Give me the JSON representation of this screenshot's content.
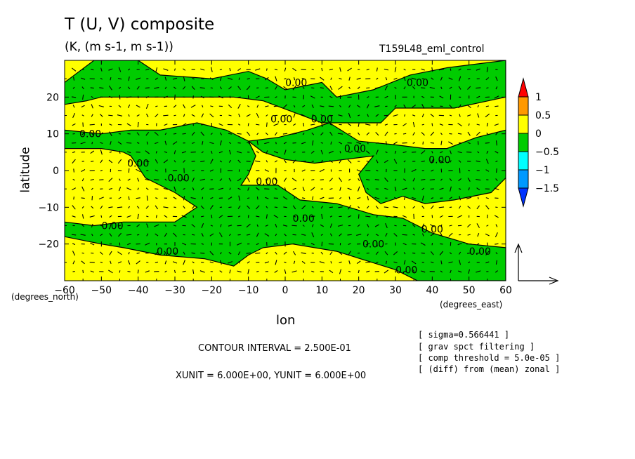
{
  "chart_data": {
    "type": "heatmap",
    "title": "T (U, V) composite",
    "subtitle": "(K, (m s-1, m s-1))",
    "run_label": "T159L48_eml_control",
    "xlabel": "lon",
    "ylabel": "latitude",
    "x_units": "(degrees_east)",
    "y_units": "(degrees_north)",
    "xlim": [
      -60,
      60
    ],
    "ylim": [
      -30,
      30
    ],
    "x_ticks": [
      -60,
      -50,
      -40,
      -30,
      -20,
      -10,
      0,
      10,
      20,
      30,
      40,
      50,
      60
    ],
    "y_ticks": [
      -20,
      -10,
      0,
      10,
      20
    ],
    "contour_interval_text": "CONTOUR INTERVAL = 2.500E-01",
    "unit_text": "XUNIT = 6.000E+00, YUNIT = 6.000E+00",
    "notes": [
      "[ sigma=0.566441 ]",
      "[ grav spct filtering ]",
      "[ comp threshold = 5.0e-05 ]",
      "[ (diff) from (mean) zonal ]"
    ],
    "colorbar": {
      "levels": [
        "1",
        "0.5",
        "0",
        "-0.5",
        "-1",
        "-1.5"
      ],
      "colors": [
        "#ff0000",
        "#ff9900",
        "#ffff00",
        "#00cc00",
        "#00ffff",
        "#0099ff",
        "#0033ff"
      ]
    },
    "contour_labels": [
      {
        "text": "0.00",
        "lon": 3,
        "lat": 24
      },
      {
        "text": "0.00",
        "lon": 36,
        "lat": 24
      },
      {
        "text": "0.00",
        "lon": -53,
        "lat": 10
      },
      {
        "text": "0.00",
        "lon": -1,
        "lat": 14
      },
      {
        "text": "0.00",
        "lon": 10,
        "lat": 14
      },
      {
        "text": "0.00",
        "lon": 19,
        "lat": 6
      },
      {
        "text": "0.00",
        "lon": -40,
        "lat": 2
      },
      {
        "text": "0.00",
        "lon": -29,
        "lat": -2
      },
      {
        "text": "0.00",
        "lon": -5,
        "lat": -3
      },
      {
        "text": "0.00",
        "lon": 42,
        "lat": 3
      },
      {
        "text": "0.00",
        "lon": 5,
        "lat": -13
      },
      {
        "text": "0.00",
        "lon": -47,
        "lat": -15
      },
      {
        "text": "0.00",
        "lon": 40,
        "lat": -16
      },
      {
        "text": "0.00",
        "lon": 24,
        "lat": -20
      },
      {
        "text": "0.00",
        "lon": -32,
        "lat": -22
      },
      {
        "text": "0.00",
        "lon": 53,
        "lat": -22
      },
      {
        "text": "0.00",
        "lon": 33,
        "lat": -27
      }
    ],
    "regions": [
      {
        "value_class": "0 to 0.5",
        "color": "#ffff00",
        "coverage": "background"
      },
      {
        "value_class": "-0.5 to 0",
        "color": "#00cc00",
        "polygon": [
          [
            -52,
            30
          ],
          [
            -40,
            30
          ],
          [
            -34,
            26
          ],
          [
            -20,
            25
          ],
          [
            -10,
            27
          ],
          [
            -5,
            25
          ],
          [
            0,
            22
          ],
          [
            10,
            24
          ],
          [
            14,
            20
          ],
          [
            24,
            22
          ],
          [
            34,
            26
          ],
          [
            44,
            28
          ],
          [
            60,
            30
          ],
          [
            60,
            20
          ],
          [
            46,
            17
          ],
          [
            40,
            17
          ],
          [
            30,
            17
          ],
          [
            26,
            13
          ],
          [
            10,
            13
          ],
          [
            2,
            16
          ],
          [
            -6,
            19
          ],
          [
            -14,
            20
          ],
          [
            -24,
            20
          ],
          [
            -34,
            20
          ],
          [
            -44,
            20
          ],
          [
            -50,
            20
          ],
          [
            -54,
            19
          ],
          [
            -60,
            18
          ],
          [
            -60,
            24
          ],
          [
            -56,
            27
          ]
        ]
      },
      {
        "value_class": "-0.5 to 0",
        "color": "#00cc00",
        "polygon": [
          [
            -60,
            11
          ],
          [
            -50,
            10
          ],
          [
            -42,
            11
          ],
          [
            -34,
            11
          ],
          [
            -24,
            13
          ],
          [
            -16,
            11
          ],
          [
            -10,
            8
          ],
          [
            -8,
            4
          ],
          [
            -10,
            -1
          ],
          [
            -12,
            -4
          ],
          [
            -2,
            -4
          ],
          [
            4,
            -8
          ],
          [
            14,
            -9
          ],
          [
            24,
            -12
          ],
          [
            32,
            -13
          ],
          [
            40,
            -17
          ],
          [
            50,
            -20
          ],
          [
            60,
            -21
          ],
          [
            60,
            -30
          ],
          [
            36,
            -30
          ],
          [
            30,
            -27
          ],
          [
            14,
            -22
          ],
          [
            2,
            -20
          ],
          [
            -6,
            -21
          ],
          [
            -10,
            -23
          ],
          [
            -14,
            -26
          ],
          [
            -22,
            -24
          ],
          [
            -34,
            -23
          ],
          [
            -44,
            -21
          ],
          [
            -50,
            -20
          ],
          [
            -60,
            -18
          ],
          [
            -60,
            -14
          ],
          [
            -52,
            -15
          ],
          [
            -44,
            -14
          ],
          [
            -30,
            -14
          ],
          [
            -24,
            -10
          ],
          [
            -30,
            -6
          ],
          [
            -38,
            -2
          ],
          [
            -42,
            4
          ],
          [
            -44,
            5
          ],
          [
            -50,
            6
          ],
          [
            -60,
            6
          ]
        ]
      },
      {
        "value_class": "-0.5 to 0",
        "color": "#00cc00",
        "polygon": [
          [
            -10,
            8
          ],
          [
            -2,
            9
          ],
          [
            6,
            11
          ],
          [
            12,
            13
          ],
          [
            20,
            8
          ],
          [
            30,
            7
          ],
          [
            38,
            6
          ],
          [
            44,
            6
          ],
          [
            52,
            9
          ],
          [
            60,
            11
          ],
          [
            60,
            -2
          ],
          [
            56,
            -6
          ],
          [
            46,
            -8
          ],
          [
            38,
            -9
          ],
          [
            32,
            -7
          ],
          [
            26,
            -9
          ],
          [
            22,
            -6
          ],
          [
            20,
            -1
          ],
          [
            24,
            4
          ],
          [
            16,
            3
          ],
          [
            8,
            2
          ],
          [
            0,
            3
          ],
          [
            -6,
            5
          ]
        ]
      }
    ],
    "vector_grid": {
      "lon_step": 2.5,
      "lat_step": 2.5
    }
  }
}
